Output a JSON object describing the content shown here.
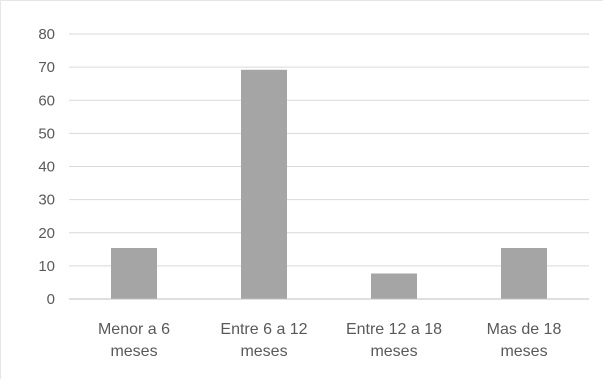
{
  "chart_data": {
    "type": "bar",
    "title": "",
    "xlabel": "",
    "ylabel": "",
    "categories": [
      [
        "Menor a 6",
        "meses"
      ],
      [
        "Entre 6 a 12",
        "meses"
      ],
      [
        "Entre 12 a 18",
        "meses"
      ],
      [
        "Mas de 18",
        "meses"
      ]
    ],
    "values": [
      15.4,
      69.2,
      7.7,
      15.4
    ],
    "ylim": [
      0,
      80
    ],
    "yticks": [
      "0",
      "10",
      "20",
      "30",
      "40",
      "50",
      "60",
      "70",
      "80"
    ],
    "grid": true,
    "legend": "none",
    "colors": {
      "bar": "#a5a5a5",
      "grid": "#d9d9d9",
      "axis": "#bfbfbf",
      "text": "#595959"
    }
  }
}
